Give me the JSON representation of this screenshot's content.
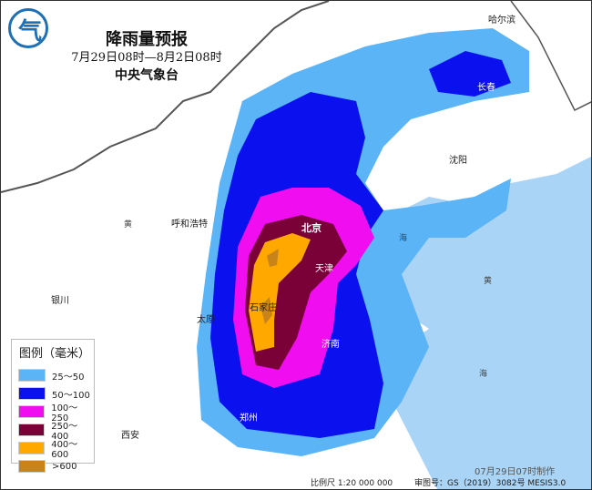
{
  "header": {
    "title": "降雨量预报",
    "period": "7月29日08时—8月2日08时",
    "issuer": "中央气象台"
  },
  "legend": {
    "title": "图例（毫米）",
    "items": [
      {
        "label": "25～50",
        "color": "#5ab4f5"
      },
      {
        "label": "50～100",
        "color": "#0a10ee"
      },
      {
        "label": "100～250",
        "color": "#f00ef0"
      },
      {
        "label": "250～400",
        "color": "#7a0038"
      },
      {
        "label": "400～600",
        "color": "#ffa800"
      },
      {
        "label": ">600",
        "color": "#c8841a"
      }
    ]
  },
  "cities": [
    {
      "name": "哈尔滨"
    },
    {
      "name": "长春"
    },
    {
      "name": "沈阳"
    },
    {
      "name": "呼和浩特"
    },
    {
      "name": "北京"
    },
    {
      "name": "天津"
    },
    {
      "name": "石家庄"
    },
    {
      "name": "太原"
    },
    {
      "name": "银川"
    },
    {
      "name": "济南"
    },
    {
      "name": "郑州"
    },
    {
      "name": "西安"
    }
  ],
  "labels": {
    "river": "黄",
    "sea1": "海",
    "sea2": "黄",
    "sea3": "海"
  },
  "footer": {
    "made": "07月29日07时制作",
    "scale": "比例尺 1:20 000 000",
    "approval": "审图号：GS（2019）3082号 MESIS3.0"
  },
  "colors": {
    "sea": "#a9d4f5",
    "land": "#ffffff"
  }
}
